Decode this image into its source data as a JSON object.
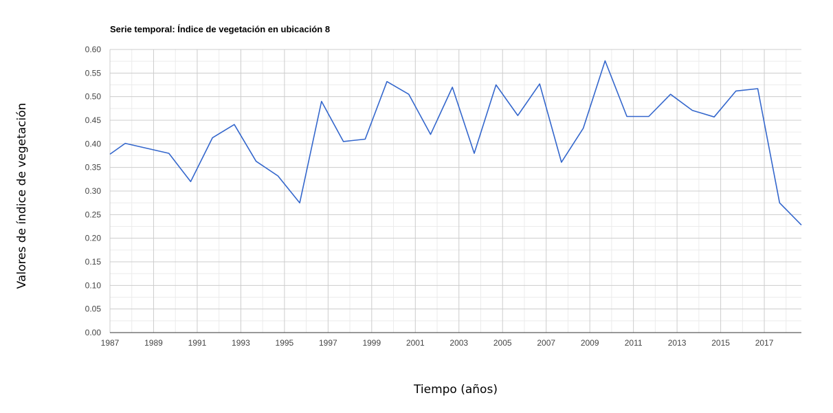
{
  "chart_data": {
    "type": "line",
    "title": "Serie temporal: Índice de vegetación en ubicación 8",
    "xlabel": "Tiempo (años)",
    "ylabel": "Valores de índice de vegetación",
    "xlim": [
      1987,
      2018.7
    ],
    "ylim": [
      0,
      0.6
    ],
    "x_ticks": [
      "1987",
      "1989",
      "1991",
      "1993",
      "1995",
      "1997",
      "1999",
      "2001",
      "2003",
      "2005",
      "2007",
      "2009",
      "2011",
      "2013",
      "2015",
      "2017"
    ],
    "y_ticks": [
      "0.00",
      "0.05",
      "0.10",
      "0.15",
      "0.20",
      "0.25",
      "0.30",
      "0.35",
      "0.40",
      "0.45",
      "0.50",
      "0.55",
      "0.60"
    ],
    "grid": true,
    "series": [
      {
        "color": "#3366cc",
        "points": [
          [
            1987.0,
            0.378
          ],
          [
            1987.7,
            0.401
          ],
          [
            1989.7,
            0.38
          ],
          [
            1990.7,
            0.32
          ],
          [
            1991.7,
            0.413
          ],
          [
            1992.7,
            0.441
          ],
          [
            1993.7,
            0.363
          ],
          [
            1994.7,
            0.332
          ],
          [
            1995.7,
            0.275
          ],
          [
            1996.7,
            0.49
          ],
          [
            1997.7,
            0.405
          ],
          [
            1998.7,
            0.41
          ],
          [
            1999.7,
            0.532
          ],
          [
            2000.7,
            0.505
          ],
          [
            2001.7,
            0.42
          ],
          [
            2002.7,
            0.52
          ],
          [
            2003.7,
            0.38
          ],
          [
            2004.7,
            0.525
          ],
          [
            2005.7,
            0.46
          ],
          [
            2006.7,
            0.527
          ],
          [
            2007.7,
            0.361
          ],
          [
            2008.7,
            0.433
          ],
          [
            2009.7,
            0.576
          ],
          [
            2010.7,
            0.458
          ],
          [
            2011.7,
            0.458
          ],
          [
            2012.7,
            0.505
          ],
          [
            2013.7,
            0.471
          ],
          [
            2014.7,
            0.457
          ],
          [
            2015.7,
            0.512
          ],
          [
            2016.7,
            0.517
          ],
          [
            2017.7,
            0.275
          ],
          [
            2018.7,
            0.228
          ]
        ]
      }
    ]
  }
}
